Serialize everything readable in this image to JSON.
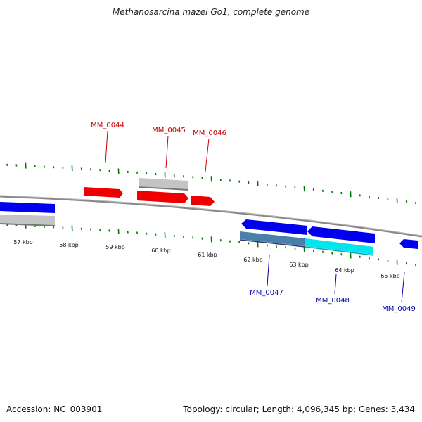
{
  "title": "Methanosarcina mazei Go1, complete genome",
  "footer": {
    "accession": "Accession: NC_003901",
    "summary": "Topology: circular; Length: 4,096,345 bp; Genes: 3,434"
  },
  "colors": {
    "forward_gene": "#ff0000",
    "reverse_gene": "#0000ee",
    "tick": "#007700",
    "backbone": "#888888",
    "label_forward": "#cc0000",
    "label_reverse": "#0000aa",
    "gray_feature": "#c0c0c0",
    "teal_feature": "#4a7fa8",
    "cyan_feature": "#00e5ee"
  },
  "kbp_labels": [
    "57 kbp",
    "58 kbp",
    "59 kbp",
    "60 kbp",
    "61 kbp",
    "62 kbp",
    "63 kbp",
    "64 kbp",
    "65 kbp"
  ],
  "gene_labels_forward": [
    "MM_0044",
    "MM_0045",
    "MM_0046"
  ],
  "gene_labels_reverse": [
    "MM_0047",
    "MM_0048",
    "MM_0049"
  ]
}
